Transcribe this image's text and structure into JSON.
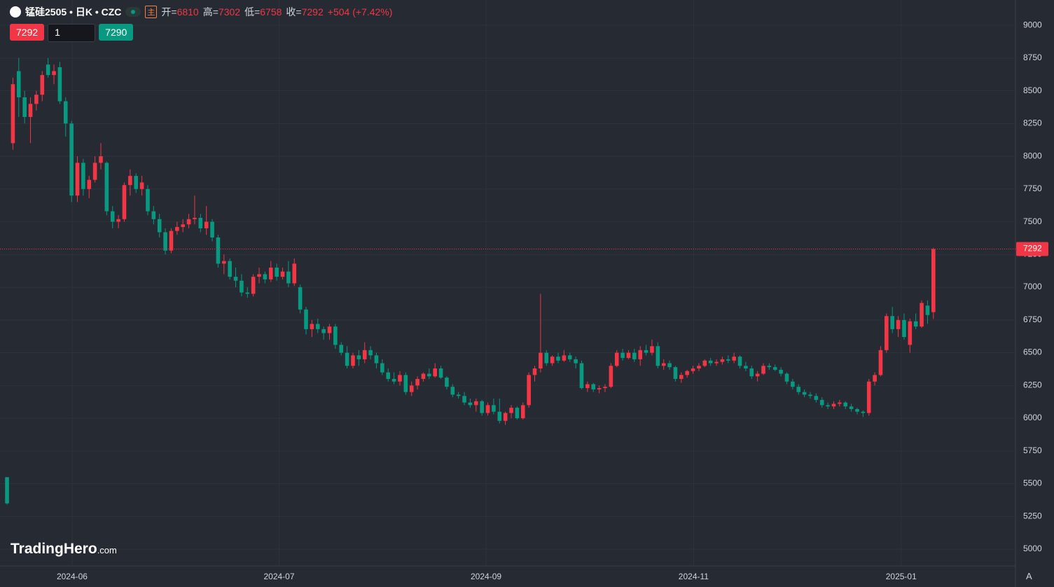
{
  "chart_data": {
    "type": "candlestick",
    "title": "锰硅2505 • 日K • CZC",
    "up_color": "#f23645",
    "down_color": "#089981",
    "grid": true,
    "ylim": [
      4872,
      9193
    ],
    "yticks": [
      5000,
      5250,
      5500,
      5750,
      6000,
      6250,
      6500,
      6750,
      7000,
      7250,
      7500,
      7750,
      8000,
      8250,
      8500,
      8750,
      9000
    ],
    "xlim": [
      -1.2,
      172
    ],
    "xticks": [
      {
        "value": 11.1,
        "label": "2024-06"
      },
      {
        "value": 46.4,
        "label": "2024-07"
      },
      {
        "value": 81.7,
        "label": "2024-09"
      },
      {
        "value": 117.1,
        "label": "2024-11"
      },
      {
        "value": 152.5,
        "label": "2025-01"
      }
    ],
    "open": [
      5550,
      8100,
      8650,
      8450,
      8300,
      8400,
      8470,
      8700,
      8620,
      8680,
      8420,
      8250,
      7700,
      7950,
      7750,
      7820,
      7950,
      7950,
      7580,
      7500,
      7520,
      7780,
      7850,
      7750,
      7750,
      7580,
      7520,
      7420,
      7280,
      7430,
      7460,
      7480,
      7520,
      7530,
      7450,
      7500,
      7380,
      7180,
      7200,
      7080,
      7050,
      6960,
      6950,
      7080,
      7100,
      7060,
      7150,
      7080,
      7120,
      7030,
      7000,
      6830,
      6680,
      6720,
      6680,
      6650,
      6700,
      6560,
      6500,
      6400,
      6480,
      6450,
      6520,
      6480,
      6420,
      6350,
      6300,
      6280,
      6330,
      6200,
      6250,
      6300,
      6340,
      6320,
      6380,
      6310,
      6240,
      6180,
      6170,
      6120,
      6100,
      6130,
      6040,
      6100,
      6050,
      5980,
      6040,
      6080,
      6000,
      6100,
      6330,
      6380,
      6500,
      6420,
      6470,
      6440,
      6480,
      6450,
      6420,
      6230,
      6260,
      6220,
      6230,
      6240,
      6400,
      6500,
      6460,
      6500,
      6450,
      6520,
      6500,
      6550,
      6400,
      6420,
      6390,
      6300,
      6330,
      6360,
      6380,
      6400,
      6440,
      6420,
      6430,
      6450,
      6440,
      6470,
      6400,
      6380,
      6320,
      6340,
      6400,
      6390,
      6370,
      6340,
      6280,
      6240,
      6200,
      6180,
      6170,
      6140,
      6100,
      6090,
      6110,
      6120,
      6090,
      6070,
      6050,
      6040,
      6280,
      6330,
      6520,
      6780,
      6680,
      6750,
      6560,
      6740,
      6700,
      6860,
      6810
    ],
    "high": [
      5550,
      8600,
      8750,
      8500,
      8450,
      8500,
      8650,
      8750,
      8700,
      8720,
      8450,
      8270,
      8000,
      7980,
      7850,
      8000,
      8100,
      7960,
      7620,
      7550,
      7800,
      7900,
      7870,
      7850,
      7780,
      7620,
      7560,
      7450,
      7450,
      7500,
      7520,
      7560,
      7700,
      7560,
      7620,
      7520,
      7400,
      7250,
      7220,
      7150,
      7100,
      7000,
      7100,
      7150,
      7120,
      7200,
      7180,
      7150,
      7200,
      7220,
      7020,
      6850,
      6750,
      6760,
      6700,
      6720,
      6720,
      6580,
      6550,
      6500,
      6520,
      6580,
      6550,
      6500,
      6450,
      6380,
      6350,
      6360,
      6350,
      6280,
      6320,
      6350,
      6380,
      6420,
      6400,
      6320,
      6260,
      6200,
      6200,
      6150,
      6150,
      6140,
      6120,
      6150,
      6150,
      6050,
      6100,
      6090,
      6120,
      6350,
      6400,
      6950,
      6520,
      6480,
      6500,
      6520,
      6500,
      6470,
      6440,
      6280,
      6270,
      6250,
      6260,
      6420,
      6520,
      6530,
      6520,
      6530,
      6550,
      6560,
      6600,
      6580,
      6450,
      6440,
      6400,
      6350,
      6370,
      6400,
      6420,
      6450,
      6460,
      6450,
      6470,
      6480,
      6500,
      6480,
      6430,
      6400,
      6360,
      6420,
      6420,
      6410,
      6390,
      6350,
      6300,
      6260,
      6220,
      6200,
      6190,
      6160,
      6120,
      6130,
      6140,
      6130,
      6110,
      6080,
      6060,
      6300,
      6350,
      6550,
      6800,
      6850,
      6780,
      6800,
      6760,
      6800,
      6900,
      6900,
      7302
    ],
    "low": [
      5340,
      8050,
      8300,
      8250,
      8100,
      8350,
      8420,
      8600,
      8550,
      8400,
      8150,
      7650,
      7650,
      7700,
      7680,
      7800,
      7900,
      7550,
      7450,
      7450,
      7500,
      7700,
      7720,
      7700,
      7550,
      7480,
      7380,
      7250,
      7260,
      7400,
      7420,
      7450,
      7480,
      7420,
      7400,
      7350,
      7150,
      7100,
      7060,
      7000,
      6930,
      6920,
      6930,
      7030,
      7030,
      7040,
      7050,
      7060,
      7000,
      7010,
      6800,
      6640,
      6620,
      6650,
      6600,
      6600,
      6530,
      6480,
      6380,
      6380,
      6400,
      6420,
      6450,
      6380,
      6330,
      6280,
      6260,
      6250,
      6180,
      6170,
      6220,
      6280,
      6300,
      6310,
      6300,
      6220,
      6160,
      6150,
      6100,
      6080,
      6050,
      6020,
      6020,
      6030,
      5960,
      5950,
      6000,
      5990,
      5990,
      6080,
      6280,
      6350,
      6400,
      6400,
      6420,
      6430,
      6430,
      6380,
      6220,
      6200,
      6200,
      6190,
      6200,
      6230,
      6390,
      6440,
      6450,
      6430,
      6400,
      6480,
      6480,
      6380,
      6370,
      6370,
      6280,
      6270,
      6310,
      6340,
      6360,
      6390,
      6400,
      6400,
      6410,
      6420,
      6420,
      6380,
      6360,
      6300,
      6280,
      6330,
      6370,
      6360,
      6320,
      6260,
      6220,
      6180,
      6160,
      6150,
      6120,
      6080,
      6070,
      6070,
      6090,
      6070,
      6050,
      6030,
      6010,
      6020,
      6250,
      6320,
      6500,
      6650,
      6620,
      6600,
      6500,
      6680,
      6690,
      6720,
      6758
    ],
    "close": [
      5350,
      8550,
      8450,
      8300,
      8400,
      8470,
      8620,
      8620,
      8650,
      8420,
      8250,
      7700,
      7950,
      7750,
      7820,
      7950,
      8000,
      7580,
      7500,
      7520,
      7780,
      7850,
      7750,
      7800,
      7580,
      7520,
      7420,
      7280,
      7430,
      7460,
      7480,
      7520,
      7530,
      7450,
      7500,
      7380,
      7180,
      7200,
      7080,
      7050,
      6960,
      6950,
      7080,
      7100,
      7060,
      7150,
      7080,
      7120,
      7030,
      7180,
      6830,
      6680,
      6720,
      6680,
      6650,
      6700,
      6560,
      6500,
      6400,
      6480,
      6450,
      6520,
      6480,
      6420,
      6350,
      6300,
      6280,
      6330,
      6200,
      6250,
      6300,
      6340,
      6320,
      6380,
      6310,
      6240,
      6180,
      6170,
      6120,
      6100,
      6130,
      6040,
      6100,
      6050,
      5980,
      6040,
      6080,
      6000,
      6100,
      6330,
      6380,
      6500,
      6420,
      6470,
      6440,
      6480,
      6450,
      6420,
      6230,
      6260,
      6220,
      6230,
      6240,
      6400,
      6500,
      6460,
      6500,
      6450,
      6520,
      6500,
      6550,
      6400,
      6420,
      6390,
      6300,
      6330,
      6360,
      6380,
      6400,
      6440,
      6420,
      6430,
      6450,
      6440,
      6470,
      6400,
      6380,
      6320,
      6340,
      6400,
      6390,
      6370,
      6340,
      6280,
      6240,
      6200,
      6180,
      6170,
      6140,
      6100,
      6090,
      6110,
      6120,
      6090,
      6070,
      6050,
      6040,
      6280,
      6330,
      6520,
      6780,
      6680,
      6750,
      6620,
      6740,
      6700,
      6880,
      6788,
      7292
    ]
  },
  "ui": {
    "main_label": "主",
    "labels": {
      "open": "开=",
      "high": "高=",
      "low": "低=",
      "close": "收="
    },
    "change": "+504 (+7.42%)",
    "sell_price": 7292,
    "quantity": "1",
    "buy_price": 7290,
    "watermark": "TradingHero",
    "watermark_suffix": ".com",
    "corner_button": "A"
  }
}
